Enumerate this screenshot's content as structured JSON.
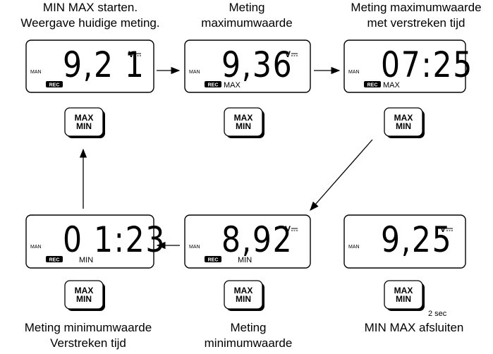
{
  "panels": [
    {
      "caption": [
        "MIN MAX starten.",
        "Weergave huidige meting."
      ],
      "display": {
        "reading": "9,2 1",
        "unit": "V",
        "mode": "MAN",
        "rec": "REC"
      },
      "button": [
        "MAX",
        "MIN"
      ]
    },
    {
      "caption": [
        "Meting",
        "maximumwaarde"
      ],
      "display": {
        "reading": "9,36",
        "unit": "V",
        "mode": "MAN",
        "rec": "REC",
        "minmax": "MAX"
      },
      "button": [
        "MAX",
        "MIN"
      ]
    },
    {
      "caption": [
        "Meting maximumwaarde",
        "met verstreken tijd"
      ],
      "display": {
        "reading": "07:25",
        "mode": "MAN",
        "rec": "REC",
        "minmax": "MAX"
      },
      "button": [
        "MAX",
        "MIN"
      ]
    },
    {
      "caption": [
        "Meting minimumwaarde",
        "Verstreken tijd"
      ],
      "display": {
        "reading": "0 1:23",
        "mode": "MAN",
        "rec": "REC",
        "minmax": "MIN"
      },
      "button": [
        "MAX",
        "MIN"
      ]
    },
    {
      "caption": [
        "Meting",
        "minimumwaarde"
      ],
      "display": {
        "reading": "8,92",
        "unit": "V",
        "mode": "MAN",
        "rec": "REC",
        "minmax": "MIN"
      },
      "button": [
        "MAX",
        "MIN"
      ]
    },
    {
      "caption": [
        "MIN MAX afsluiten"
      ],
      "display": {
        "reading": "9,25",
        "unit": "V",
        "mode": "MAN"
      },
      "button": [
        "MAX",
        "MIN"
      ],
      "button_note": "2 sec"
    }
  ]
}
